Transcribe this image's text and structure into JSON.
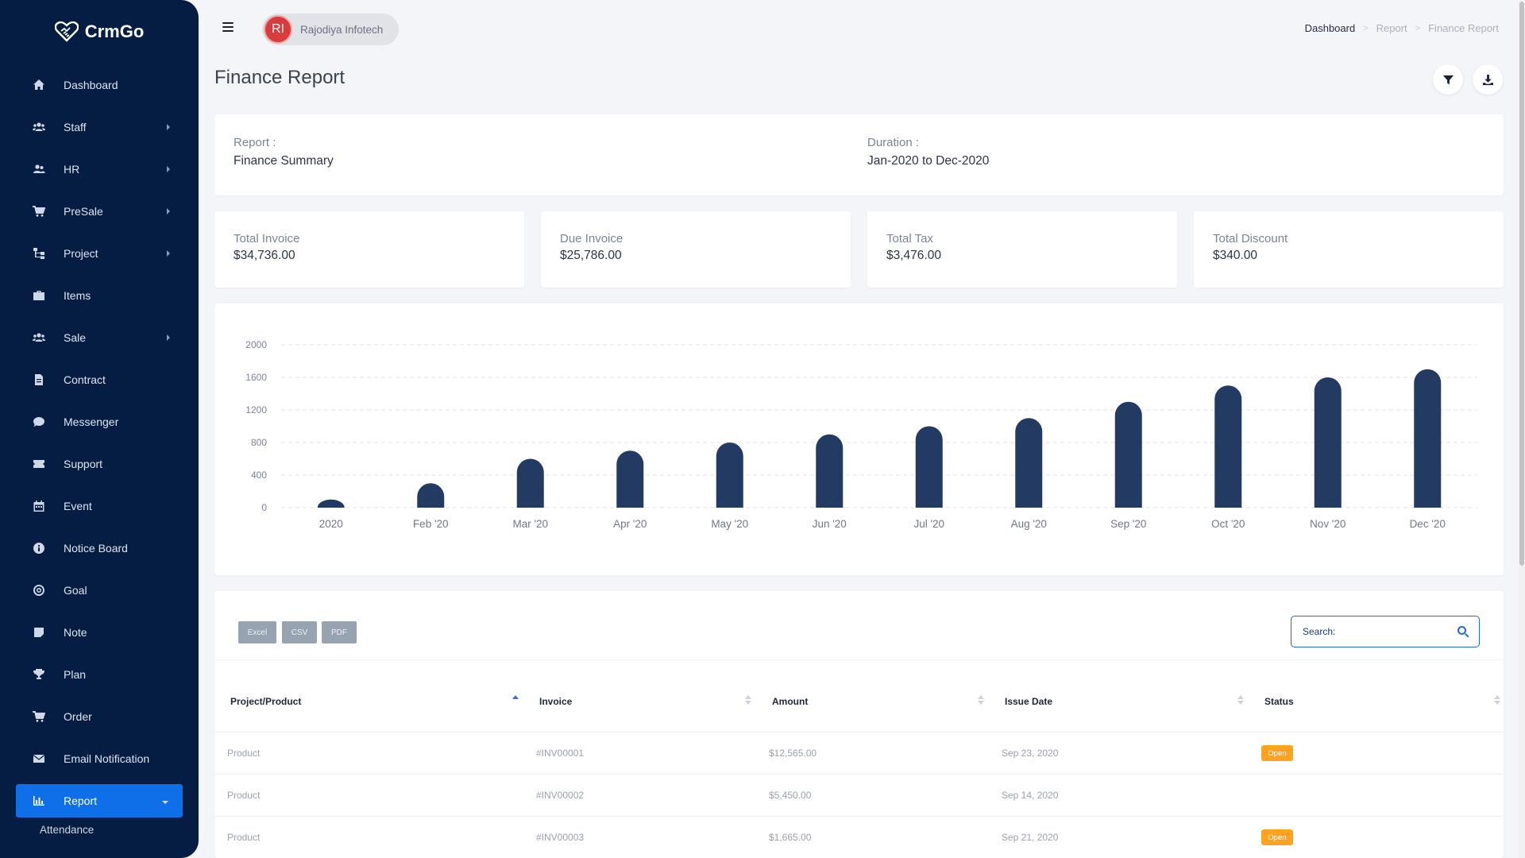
{
  "brand": {
    "name": "CrmGo"
  },
  "sidebar": {
    "items": [
      {
        "label": "Dashboard",
        "icon": "home-icon",
        "arrow": false
      },
      {
        "label": "Staff",
        "icon": "users-icon",
        "arrow": true
      },
      {
        "label": "HR",
        "icon": "user-group-icon",
        "arrow": true
      },
      {
        "label": "PreSale",
        "icon": "cart-icon",
        "arrow": true
      },
      {
        "label": "Project",
        "icon": "sitemap-icon",
        "arrow": true
      },
      {
        "label": "Items",
        "icon": "briefcase-icon",
        "arrow": false
      },
      {
        "label": "Sale",
        "icon": "users-icon",
        "arrow": true
      },
      {
        "label": "Contract",
        "icon": "file-icon",
        "arrow": false
      },
      {
        "label": "Messenger",
        "icon": "chat-icon",
        "arrow": false
      },
      {
        "label": "Support",
        "icon": "ticket-icon",
        "arrow": false
      },
      {
        "label": "Event",
        "icon": "calendar-icon",
        "arrow": false
      },
      {
        "label": "Notice Board",
        "icon": "info-icon",
        "arrow": false
      },
      {
        "label": "Goal",
        "icon": "target-icon",
        "arrow": false
      },
      {
        "label": "Note",
        "icon": "note-icon",
        "arrow": false
      },
      {
        "label": "Plan",
        "icon": "trophy-icon",
        "arrow": false
      },
      {
        "label": "Order",
        "icon": "cart-icon",
        "arrow": false
      },
      {
        "label": "Email Notification",
        "icon": "envelope-icon",
        "arrow": false
      }
    ],
    "active": {
      "label": "Report",
      "icon": "bar-chart-icon"
    },
    "sub_items": [
      "Attendance"
    ]
  },
  "topbar": {
    "company_initials": "RI",
    "company_name": "Rajodiya Infotech",
    "breadcrumb": [
      "Dashboard",
      "Report",
      "Finance Report"
    ]
  },
  "page": {
    "title": "Finance Report"
  },
  "summary": {
    "report_label": "Report :",
    "report_value": "Finance Summary",
    "duration_label": "Duration :",
    "duration_value": "Jan-2020 to Dec-2020"
  },
  "stats": [
    {
      "label": "Total Invoice",
      "value": "$34,736.00"
    },
    {
      "label": "Due Invoice",
      "value": "$25,786.00"
    },
    {
      "label": "Total Tax",
      "value": "$3,476.00"
    },
    {
      "label": "Total Discount",
      "value": "$340.00"
    }
  ],
  "chart_data": {
    "type": "bar",
    "categories": [
      "2020",
      "Feb '20",
      "Mar '20",
      "Apr '20",
      "May '20",
      "Jun '20",
      "Jul '20",
      "Aug '20",
      "Sep '20",
      "Oct '20",
      "Nov '20",
      "Dec '20"
    ],
    "values": [
      100,
      300,
      600,
      700,
      800,
      900,
      1000,
      1100,
      1300,
      1500,
      1600,
      1700
    ],
    "yticks": [
      0,
      400,
      800,
      1200,
      1600,
      2000
    ],
    "ylim": [
      0,
      2000
    ],
    "grid": true,
    "color": "#233b63"
  },
  "table": {
    "export_buttons": [
      "Excel",
      "CSV",
      "PDF"
    ],
    "search_placeholder": "Search:",
    "headers": [
      "Project/Product",
      "Invoice",
      "Amount",
      "Issue Date",
      "Status"
    ],
    "rows": [
      {
        "project": "Product",
        "invoice": "#INV00001",
        "amount": "$12,565.00",
        "date": "Sep 23, 2020",
        "status": "Open"
      },
      {
        "project": "Product",
        "invoice": "#INV00002",
        "amount": "$5,450.00",
        "date": "Sep 14, 2020",
        "status": ""
      },
      {
        "project": "Product",
        "invoice": "#INV00003",
        "amount": "$1,665.00",
        "date": "Sep 21, 2020",
        "status": "Open"
      }
    ]
  },
  "colors": {
    "sidebar": "#051d43",
    "accent": "#0e6fe8",
    "bar": "#233b63",
    "badge": "#ffa21d"
  }
}
